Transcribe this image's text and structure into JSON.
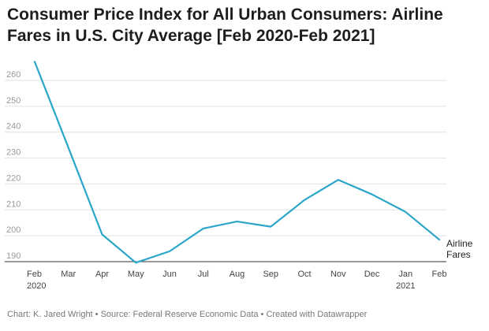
{
  "chart_data": {
    "type": "line",
    "title": "Consumer Price Index for All Urban Consumers: Airline Fares in U.S. City Average [Feb 2020-Feb 2021]",
    "x_ticks": [
      "Feb",
      "Mar",
      "Apr",
      "May",
      "Jun",
      "Jul",
      "Aug",
      "Sep",
      "Oct",
      "Nov",
      "Dec",
      "Jan",
      "Feb"
    ],
    "x_year_labels": [
      {
        "index": 0,
        "label": "2020"
      },
      {
        "index": 11,
        "label": "2021"
      }
    ],
    "x": [
      "2020-02",
      "2020-03",
      "2020-04",
      "2020-05",
      "2020-06",
      "2020-07",
      "2020-08",
      "2020-09",
      "2020-10",
      "2020-11",
      "2020-12",
      "2021-01",
      "2021-02"
    ],
    "ylim": [
      190,
      260
    ],
    "y_ticks": [
      190,
      200,
      210,
      220,
      230,
      240,
      250,
      260
    ],
    "grid": true,
    "series": [
      {
        "name": "Airline Fares",
        "color": "#2ba6c9",
        "values": [
          267.2,
          234.0,
          200.5,
          189.6,
          194.0,
          202.8,
          205.5,
          203.5,
          213.8,
          221.6,
          216.0,
          209.2,
          198.5
        ]
      }
    ],
    "xlabel": "",
    "ylabel": ""
  },
  "footer": "Chart: K. Jared Wright • Source: Federal Reserve Economic Data • Created with Datawrapper"
}
